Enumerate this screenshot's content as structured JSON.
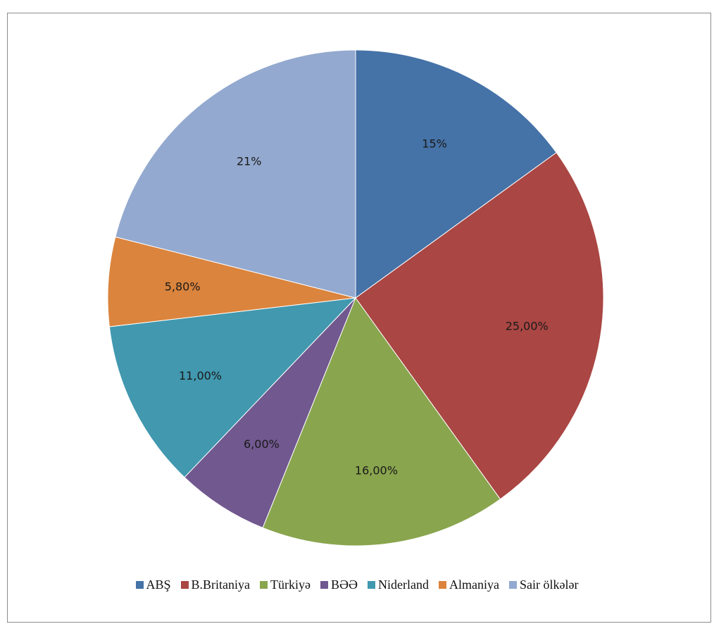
{
  "chart_data": {
    "type": "pie",
    "title": "",
    "categories": [
      "ABŞ",
      "B.Britaniya",
      "Türkiyə",
      "BƏƏ",
      "Niderland",
      "Almaniya",
      "Sair ölkələr"
    ],
    "values": [
      15,
      25,
      16,
      6,
      11,
      5.8,
      21
    ],
    "data_labels": [
      "15%",
      "25,00%",
      "16,00%",
      "6,00%",
      "11,00%",
      "5,80%",
      "21%"
    ],
    "colors": [
      "#4572a7",
      "#aa4643",
      "#89a54e",
      "#71588f",
      "#4198af",
      "#db843d",
      "#93a9cf"
    ],
    "start_angle": "top, clockwise",
    "legend_position": "bottom"
  }
}
